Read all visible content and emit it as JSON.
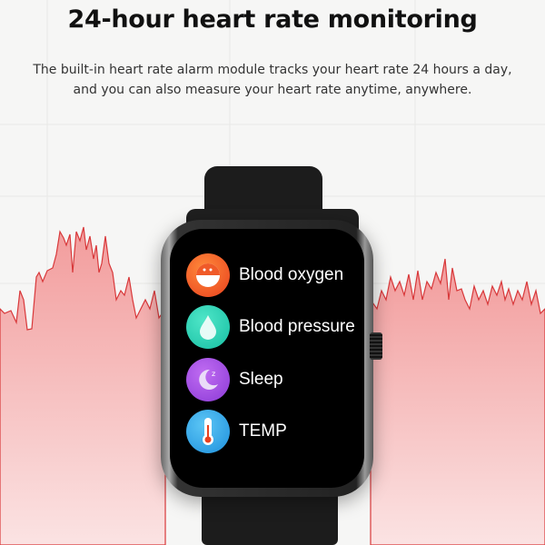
{
  "header": {
    "title": "24-hour heart rate monitoring",
    "description_line1": "The built-in heart rate alarm module tracks your heart rate 24 hours a day,",
    "description_line2": "and you can also measure your heart rate anytime, anywhere."
  },
  "colors": {
    "wave_line": "#d8383a",
    "wave_fill": "#f2a3a3",
    "background": "#f6f6f5"
  },
  "watch": {
    "menu": [
      {
        "label": "Blood oxygen",
        "icon": "blood-oxygen-icon",
        "color": "#f05a28"
      },
      {
        "label": "Blood pressure",
        "icon": "water-drop-icon",
        "color": "#22cdb0"
      },
      {
        "label": "Sleep",
        "icon": "moon-sleep-icon",
        "color": "#a54de0"
      },
      {
        "label": "TEMP",
        "icon": "thermometer-icon",
        "color": "#2fa9ea"
      }
    ]
  }
}
